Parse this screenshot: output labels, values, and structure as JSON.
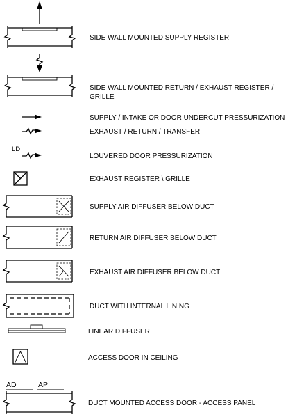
{
  "legend": {
    "items": [
      {
        "id": "side-wall-supply",
        "label_lines": [
          "SIDE WALL MOUNTED SUPPLY REGISTER"
        ]
      },
      {
        "id": "side-wall-return",
        "label_lines": [
          "SIDE WALL MOUNTED RETURN / EXHAUST REGISTER /",
          "GRILLE"
        ]
      },
      {
        "id": "supply-arrow",
        "label_lines": [
          "SUPPLY / INTAKE OR DOOR UNDERCUT PRESSURIZATION"
        ]
      },
      {
        "id": "exhaust-arrow",
        "label_lines": [
          "EXHAUST / RETURN / TRANSFER"
        ]
      },
      {
        "id": "louvered-door",
        "label_lines": [
          "LOUVERED DOOR PRESSURIZATION"
        ],
        "symbol_text": "LD"
      },
      {
        "id": "exhaust-register",
        "label_lines": [
          "EXHAUST  REGISTER \\ GRILLE"
        ]
      },
      {
        "id": "supply-diffuser",
        "label_lines": [
          "SUPPLY AIR DIFFUSER BELOW DUCT"
        ]
      },
      {
        "id": "return-diffuser",
        "label_lines": [
          "RETURN AIR DIFFUSER BELOW DUCT"
        ]
      },
      {
        "id": "exhaust-diffuser",
        "label_lines": [
          "EXHAUST AIR DIFFUSER BELOW DUCT"
        ]
      },
      {
        "id": "duct-lining",
        "label_lines": [
          "DUCT WITH INTERNAL LINING"
        ]
      },
      {
        "id": "linear-diffuser",
        "label_lines": [
          "LINEAR DIFFUSER"
        ]
      },
      {
        "id": "access-door-ceiling",
        "label_lines": [
          "ACCESS DOOR IN CEILING"
        ]
      },
      {
        "id": "duct-access-door",
        "label_lines": [
          "DUCT MOUNTED ACCESS DOOR - ACCESS PANEL"
        ],
        "symbol_text": [
          "AD",
          "AP"
        ]
      }
    ]
  }
}
